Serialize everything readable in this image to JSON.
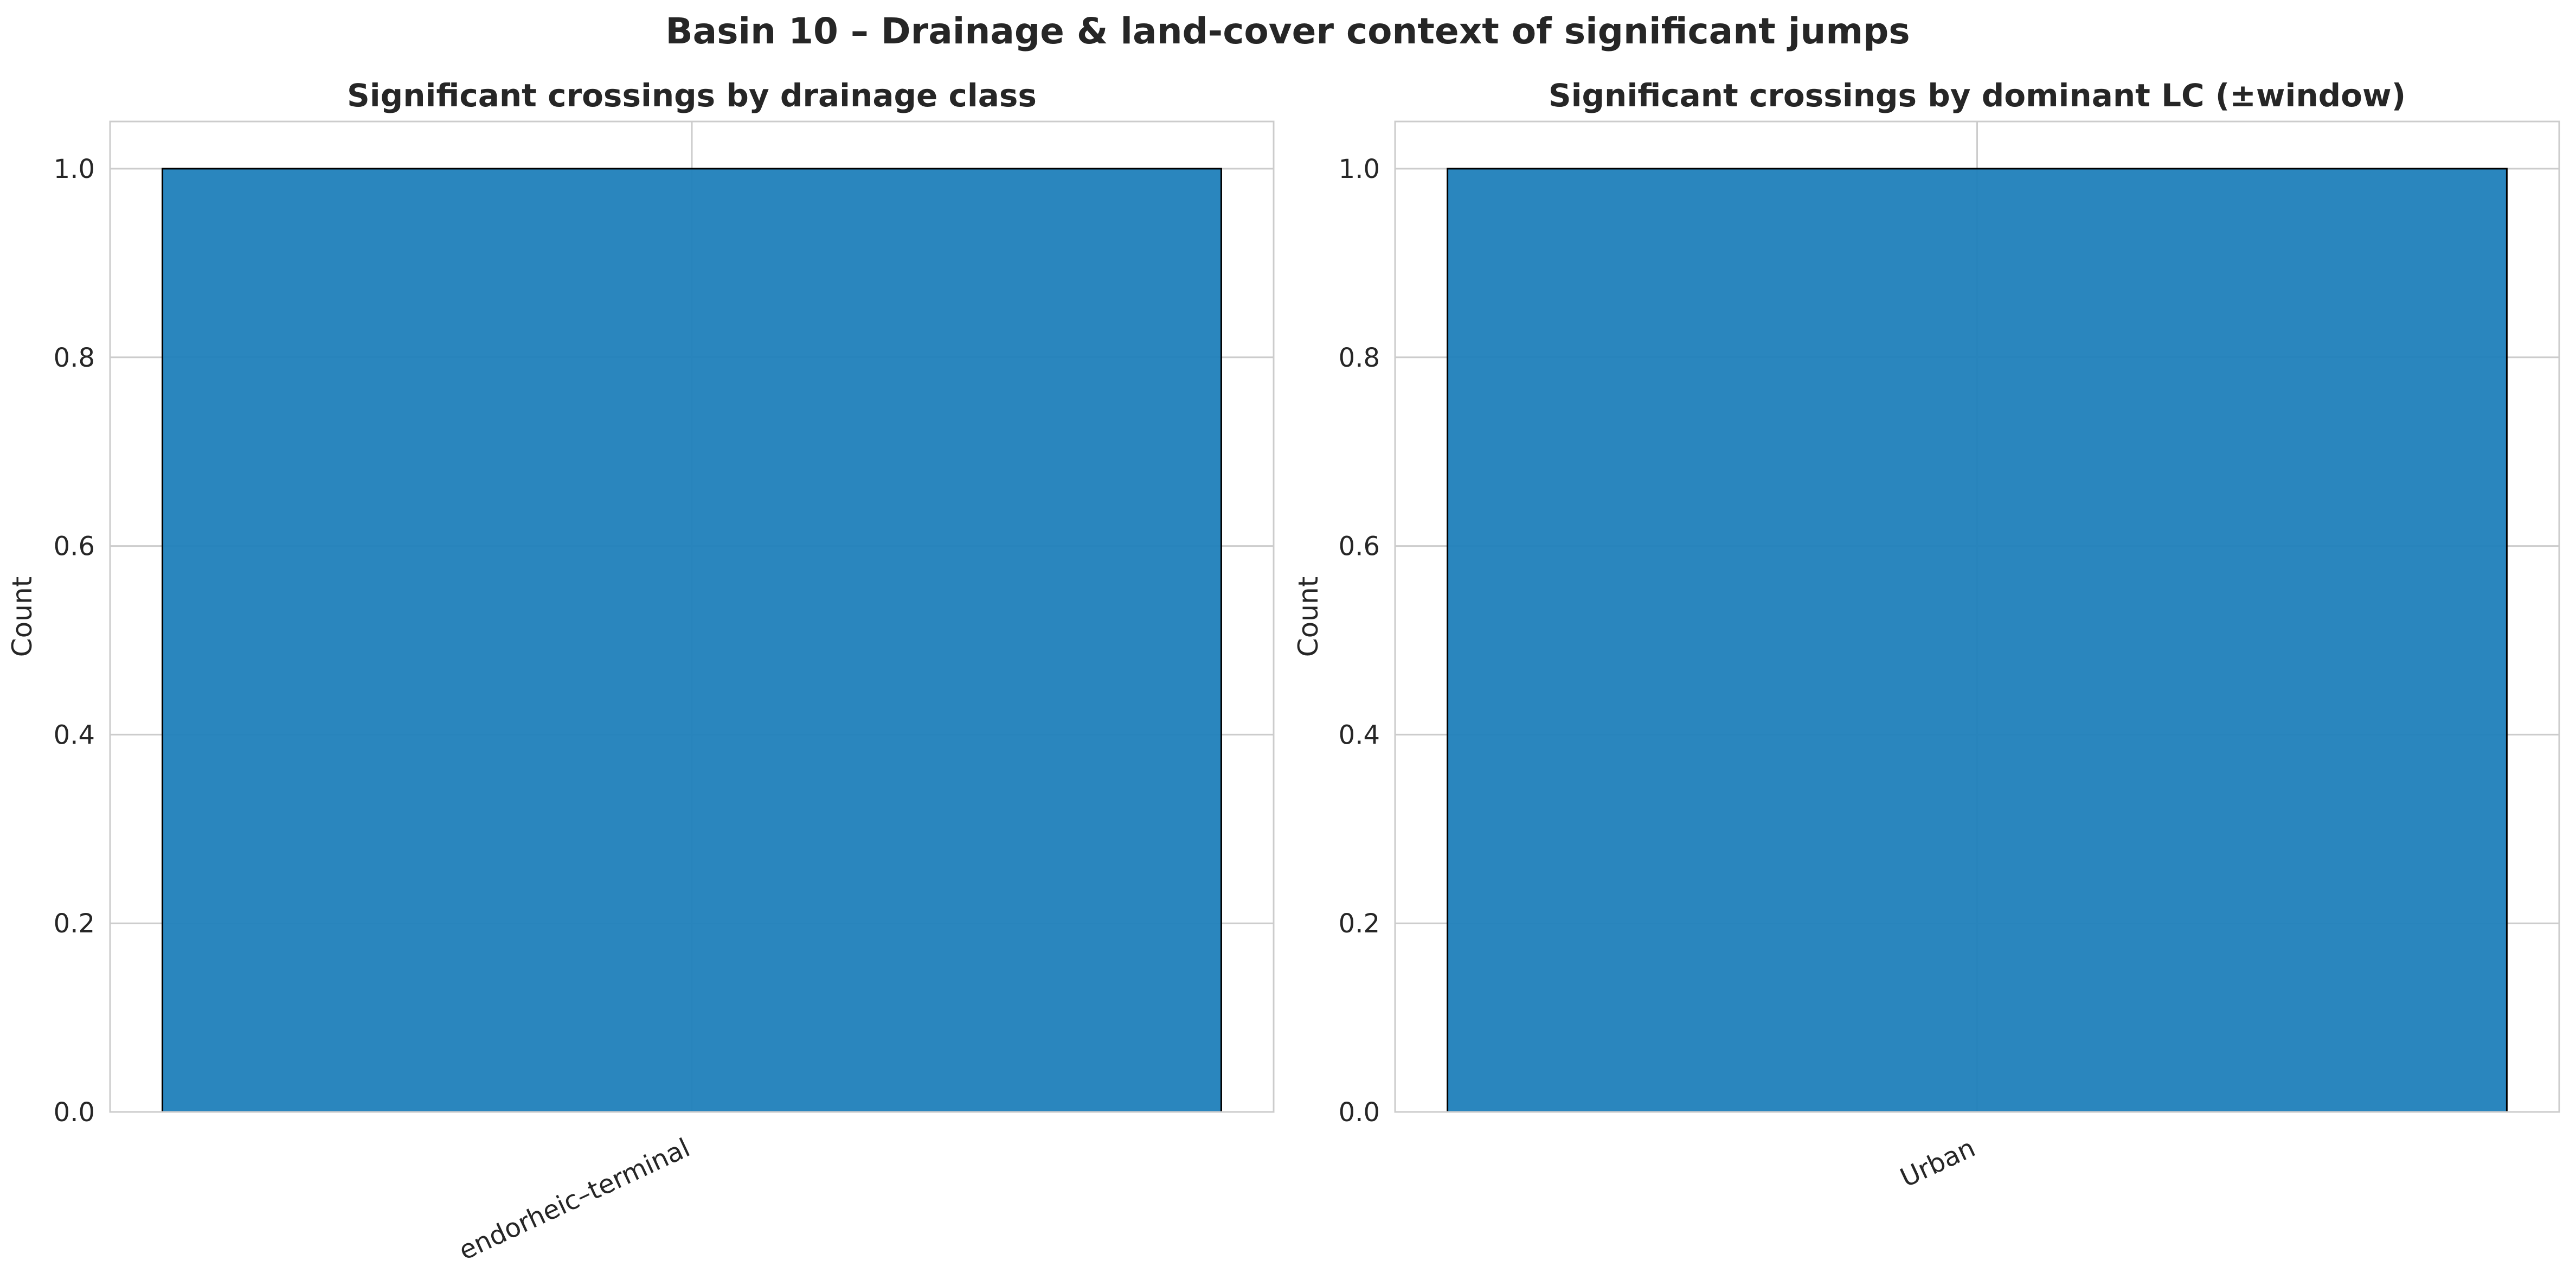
{
  "figure": {
    "title": "Basin 10 – Drainage & land-cover context of significant jumps"
  },
  "chart_data": [
    {
      "type": "bar",
      "title": "Significant crossings by drainage class",
      "xlabel": "",
      "ylabel": "Count",
      "categories": [
        "endorheic–terminal"
      ],
      "values": [
        1
      ],
      "ylim": [
        0,
        1.05
      ],
      "yticks": [
        "0.0",
        "0.2",
        "0.4",
        "0.6",
        "0.8",
        "1.0"
      ],
      "grid": true,
      "bar_color": "#1f7fba",
      "edge_color": "#000000"
    },
    {
      "type": "bar",
      "title": "Significant crossings by dominant LC (±window)",
      "xlabel": "",
      "ylabel": "Count",
      "categories": [
        "Urban"
      ],
      "values": [
        1
      ],
      "ylim": [
        0,
        1.05
      ],
      "yticks": [
        "0.0",
        "0.2",
        "0.4",
        "0.6",
        "0.8",
        "1.0"
      ],
      "grid": true,
      "bar_color": "#1f7fba",
      "edge_color": "#000000"
    }
  ]
}
